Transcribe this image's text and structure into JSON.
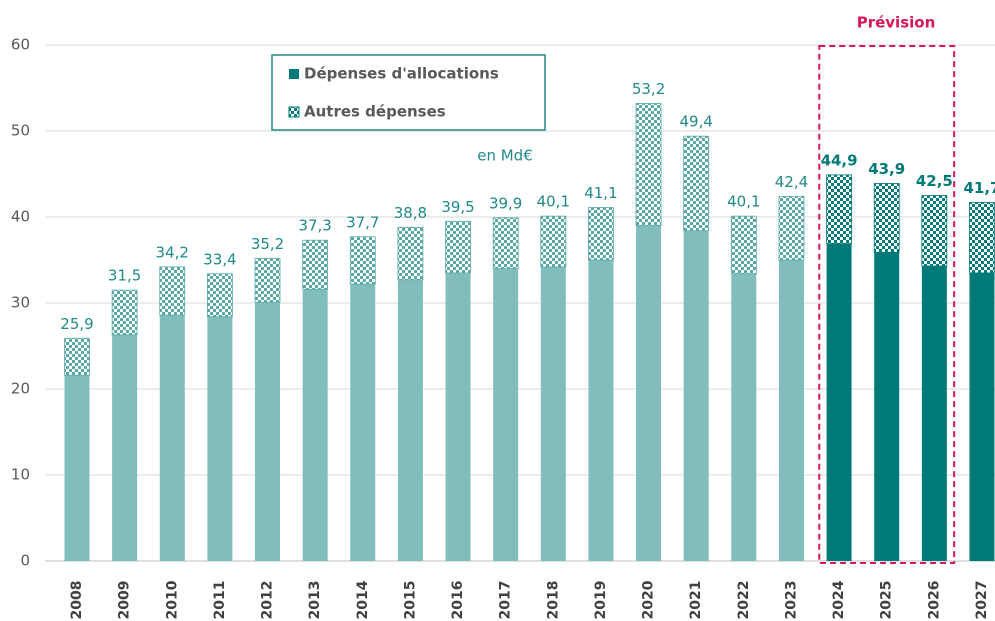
{
  "chart_data": {
    "type": "stacked_bar",
    "annotation": "en Md€",
    "forecast": {
      "label": "Prévision",
      "start": "2024",
      "end": "2026"
    },
    "categories": [
      "2008",
      "2009",
      "2010",
      "2011",
      "2012",
      "2013",
      "2014",
      "2015",
      "2016",
      "2017",
      "2018",
      "2019",
      "2020",
      "2021",
      "2022",
      "2023",
      "2024",
      "2025",
      "2026",
      "2027"
    ],
    "totals": [
      25.9,
      31.5,
      34.2,
      33.4,
      35.2,
      37.3,
      37.7,
      38.8,
      39.5,
      39.9,
      40.1,
      41.1,
      53.2,
      49.4,
      40.1,
      42.4,
      44.9,
      43.9,
      42.5,
      41.7
    ],
    "value_labels": [
      "25,9",
      "31,5",
      "34,2",
      "33,4",
      "35,2",
      "37,3",
      "37,7",
      "38,8",
      "39,5",
      "39,9",
      "40,1",
      "41,1",
      "53,2",
      "49,4",
      "40,1",
      "42,4",
      "44,9",
      "43,9",
      "42,5",
      "41,7"
    ],
    "series": [
      {
        "name": "Dépenses d'allocations",
        "color": "#007a78",
        "colors": [
          "#80bdbb",
          "#80bdbb",
          "#80bdbb",
          "#80bdbb",
          "#80bdbb",
          "#80bdbb",
          "#80bdbb",
          "#80bdbb",
          "#80bdbb",
          "#80bdbb",
          "#80bdbb",
          "#80bdbb",
          "#80bdbb",
          "#80bdbb",
          "#80bdbb",
          "#80bdbb",
          "#007a78",
          "#007a78",
          "#007a78",
          "#007a78"
        ],
        "values": [
          21.6,
          26.3,
          28.6,
          28.4,
          30.1,
          31.6,
          32.2,
          32.7,
          33.5,
          34.0,
          34.2,
          35.0,
          39.0,
          38.4,
          33.4,
          35.0,
          36.9,
          35.9,
          34.3,
          33.5
        ]
      },
      {
        "name": "Autres dépenses",
        "color": "#007a78",
        "pattern": "checker",
        "colors": [
          "#5aa9a7",
          "#5aa9a7",
          "#5aa9a7",
          "#5aa9a7",
          "#5aa9a7",
          "#5aa9a7",
          "#5aa9a7",
          "#5aa9a7",
          "#5aa9a7",
          "#5aa9a7",
          "#5aa9a7",
          "#5aa9a7",
          "#5aa9a7",
          "#5aa9a7",
          "#5aa9a7",
          "#5aa9a7",
          "#007a78",
          "#007a78",
          "#007a78",
          "#007a78"
        ],
        "values": [
          4.3,
          5.2,
          5.6,
          5.0,
          5.1,
          5.7,
          5.5,
          6.1,
          6.0,
          5.9,
          5.9,
          6.1,
          14.2,
          11.0,
          6.7,
          7.4,
          8.0,
          8.0,
          8.2,
          8.2
        ]
      }
    ],
    "ylim": [
      0,
      60
    ],
    "yticks": [
      0,
      10,
      20,
      30,
      40,
      50,
      60
    ],
    "grid": true
  }
}
